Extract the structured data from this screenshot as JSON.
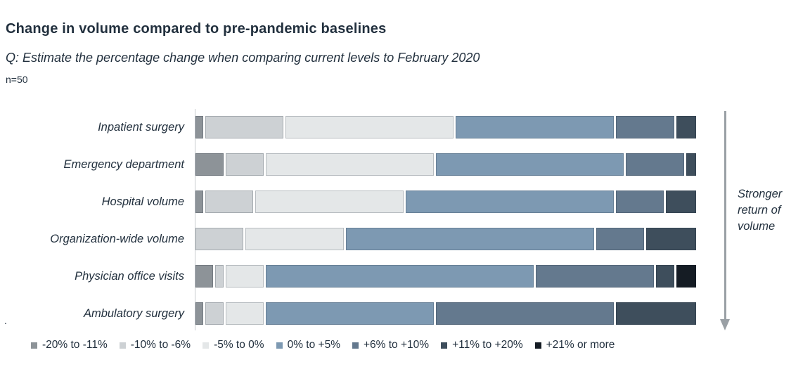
{
  "header": {
    "title": "Change in volume compared to pre-pandemic baselines",
    "subtitle": "Q: Estimate the percentage change when comparing current levels to February 2020",
    "sample_size": "n=50"
  },
  "annotation": {
    "text": "Stronger return of volume",
    "lines": [
      "Stronger",
      "return of",
      "volume"
    ],
    "arrow_direction": "down",
    "arrow_color": "#9aa0a5"
  },
  "footnote_dot": ".",
  "colors": {
    "text": "#22303e",
    "axis_line": "#c7cbce",
    "background": "#ffffff"
  },
  "chart_data": {
    "type": "bar",
    "variant": "stacked-horizontal",
    "unit": "% of respondents",
    "xlim": [
      0,
      100
    ],
    "grid": false,
    "legend_position": "bottom",
    "categories": [
      "Inpatient surgery",
      "Emergency department",
      "Hospital volume",
      "Organization-wide volume",
      "Physician office visits",
      "Ambulatory surgery"
    ],
    "series": [
      {
        "name": "-20% to -11%",
        "color": "#8d9398",
        "values": [
          2,
          6,
          2,
          0,
          4,
          2
        ]
      },
      {
        "name": "-10% to -6%",
        "color": "#cdd1d4",
        "values": [
          16,
          8,
          10,
          10,
          2,
          4
        ]
      },
      {
        "name": "-5% to 0%",
        "color": "#e4e7e8",
        "values": [
          34,
          34,
          30,
          20,
          8,
          8
        ]
      },
      {
        "name": "0% to +5%",
        "color": "#7d99b2",
        "values": [
          32,
          38,
          42,
          50,
          54,
          34
        ]
      },
      {
        "name": "+6% to +10%",
        "color": "#64798e",
        "values": [
          12,
          12,
          10,
          10,
          24,
          36
        ]
      },
      {
        "name": "+11% to +20%",
        "color": "#3e4e5c",
        "values": [
          4,
          2,
          6,
          10,
          4,
          16
        ]
      },
      {
        "name": "+21% or more",
        "color": "#151c24",
        "values": [
          0,
          0,
          0,
          0,
          4,
          0
        ]
      }
    ]
  }
}
